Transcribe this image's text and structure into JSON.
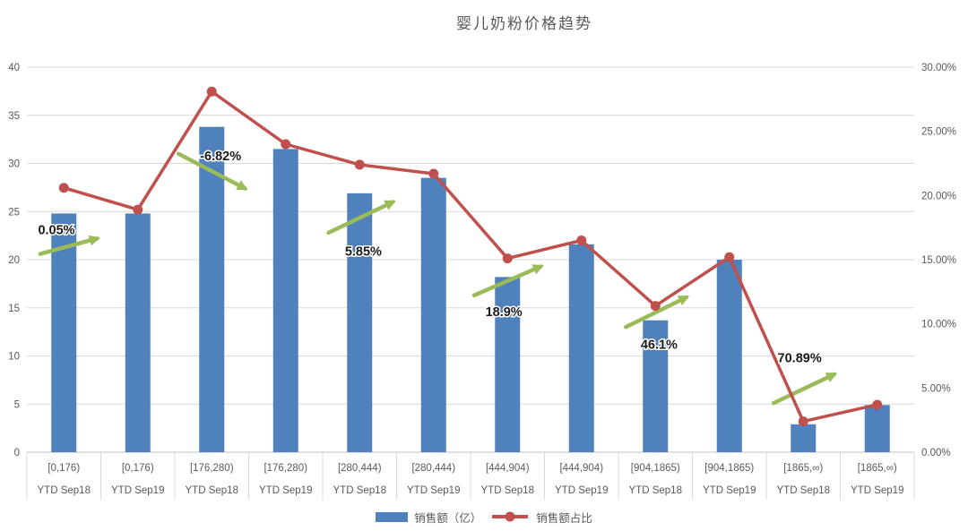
{
  "title": "婴儿奶粉价格趋势",
  "legend": [
    {
      "label": "销售额（亿）",
      "marker": "bar",
      "color": "#4F81BD"
    },
    {
      "label": "销售额占比",
      "marker": "line",
      "color": "#C0504D"
    }
  ],
  "chart_data": {
    "type": "bar",
    "subtype": "combo-bar-line-dual-axis",
    "title": "婴儿奶粉价格趋势",
    "categories": [
      {
        "range": "[0,176)",
        "period": "YTD Sep18"
      },
      {
        "range": "[0,176)",
        "period": "YTD Sep19"
      },
      {
        "range": "[176,280)",
        "period": "YTD Sep18"
      },
      {
        "range": "[176,280)",
        "period": "YTD Sep19"
      },
      {
        "range": "[280,444)",
        "period": "YTD Sep18"
      },
      {
        "range": "[280,444)",
        "period": "YTD Sep19"
      },
      {
        "range": "[444,904)",
        "period": "YTD Sep18"
      },
      {
        "range": "[444,904)",
        "period": "YTD Sep19"
      },
      {
        "range": "[904,1865)",
        "period": "YTD Sep18"
      },
      {
        "range": "[904,1865)",
        "period": "YTD Sep19"
      },
      {
        "range": "[1865,∞)",
        "period": "YTD Sep18"
      },
      {
        "range": "[1865,∞)",
        "period": "YTD Sep19"
      }
    ],
    "series": [
      {
        "name": "销售额（亿）",
        "type": "bar",
        "axis": "left",
        "color": "#4F81BD",
        "values": [
          24.8,
          24.8,
          33.8,
          31.5,
          26.9,
          28.5,
          18.2,
          21.6,
          13.7,
          20.0,
          2.9,
          4.9
        ]
      },
      {
        "name": "销售额占比",
        "type": "line",
        "axis": "right",
        "color": "#C0504D",
        "values_pct": [
          20.6,
          18.9,
          28.1,
          24.0,
          22.4,
          21.7,
          15.1,
          16.5,
          11.4,
          15.2,
          2.4,
          3.7
        ]
      }
    ],
    "left_axis": {
      "min": 0,
      "max": 40,
      "ticks": [
        0,
        5,
        10,
        15,
        20,
        25,
        30,
        35,
        40
      ]
    },
    "right_axis": {
      "min": 0,
      "max": 30,
      "ticks": [
        "0.00%",
        "5.00%",
        "10.00%",
        "15.00%",
        "20.00%",
        "25.00%",
        "30.00%"
      ]
    },
    "annotations": [
      {
        "label": "0.05%",
        "text_cat": 0.4,
        "text_val": 23.1,
        "tail_cat": 0.18,
        "tail_val": 20.6,
        "head_cat": 0.95,
        "head_val": 22.2
      },
      {
        "label": "-6.82%",
        "text_cat": 2.62,
        "text_val": 30.8,
        "tail_cat": 2.05,
        "tail_val": 31.0,
        "head_cat": 2.95,
        "head_val": 27.4
      },
      {
        "label": "5.85%",
        "text_cat": 4.55,
        "text_val": 20.9,
        "tail_cat": 4.08,
        "tail_val": 22.8,
        "head_cat": 4.95,
        "head_val": 26.0
      },
      {
        "label": "18.9%",
        "text_cat": 6.45,
        "text_val": 14.6,
        "tail_cat": 6.05,
        "tail_val": 16.3,
        "head_cat": 6.95,
        "head_val": 19.3
      },
      {
        "label": "46.1%",
        "text_cat": 8.55,
        "text_val": 11.2,
        "tail_cat": 8.1,
        "tail_val": 13.0,
        "head_cat": 8.92,
        "head_val": 16.1
      },
      {
        "label": "70.89%",
        "text_cat": 10.45,
        "text_val": 9.8,
        "tail_cat": 10.1,
        "tail_val": 5.1,
        "head_cat": 10.92,
        "head_val": 8.1
      }
    ],
    "annotation_arrow_color": "#9BBB59",
    "grid_color": "#D9D9D9",
    "axis_line_color": "#BFBFBF",
    "axis_text_color": "#595959",
    "grid": true,
    "legend_position": "bottom"
  }
}
